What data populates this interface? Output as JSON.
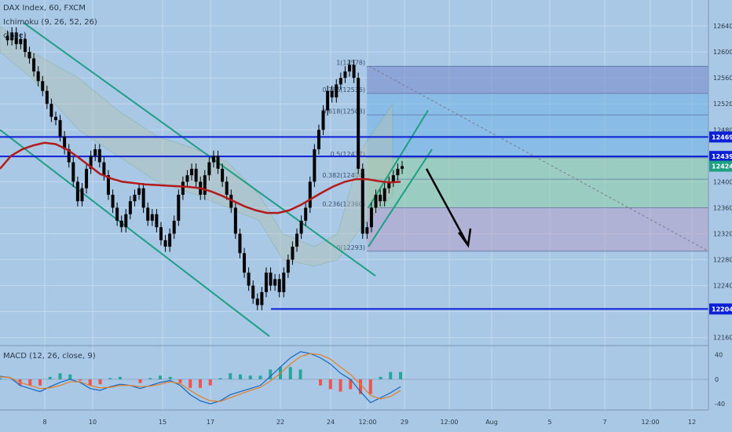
{
  "header": {
    "symbol_line": "DAX Index, 60, FXCM",
    "ichimoku_line": "Ichimoku (9, 26, 52, 26)",
    "ma_line": "close)"
  },
  "macd_header": "MACD (12, 26, close, 9)",
  "colors": {
    "background": "#a9c8e6",
    "grid": "#c3d8ec",
    "candle": "#000000",
    "ma": "#b31b1b",
    "channel": "#1e9e83",
    "level": "#0b1fd6",
    "fib_upper_zone": "#7486c9",
    "fib_mid_zone": "#6fb3e6",
    "fib_green_zone": "#8fcfa4",
    "fib_lower_zone": "#b6a1c6",
    "cloud_upper": "#b4c2b2",
    "cloud_lower": "#c6b1c2",
    "macd_line": "#1565c0",
    "signal_line": "#e67e22",
    "hist_pos": "#26a69a",
    "hist_neg": "#ef5350",
    "arrow": "#000000"
  },
  "chart_data": {
    "type": "candlestick",
    "y_range": [
      12150,
      12680
    ],
    "y_ticks": [
      12160,
      12200,
      12240,
      12280,
      12320,
      12360,
      12400,
      12440,
      12480,
      12520,
      12560,
      12600,
      12640
    ],
    "x_ticks": [
      "8",
      "10",
      "15",
      "17",
      "22",
      "24",
      "12:00",
      "29",
      "12:00",
      "Aug",
      "5",
      "7",
      "12:00",
      "12"
    ],
    "price_labels": [
      {
        "value": 12469,
        "text": "12469",
        "color": "#0b1fd6"
      },
      {
        "value": 12439,
        "text": "12439",
        "color": "#0b1fd6"
      },
      {
        "value": 12424,
        "text": "12424",
        "color": "#1e9e83"
      },
      {
        "value": 12204,
        "text": "12204",
        "color": "#0b1fd6"
      }
    ],
    "horizontal_levels": [
      12469,
      12439,
      12204
    ],
    "fib_levels": [
      {
        "ratio": "1",
        "value": 12578,
        "label": "1(12578)"
      },
      {
        "ratio": "0.786",
        "value": 12536,
        "label": "0.786(12536)"
      },
      {
        "ratio": "0.618",
        "value": 12503,
        "label": "0.618(12503)"
      },
      {
        "ratio": "0.5",
        "value": 12437,
        "label": "0.5(12437)"
      },
      {
        "ratio": "0.382",
        "value": 12404,
        "label": "0.382(12404)"
      },
      {
        "ratio": "0.236",
        "value": 12360,
        "label": "0.236(12360)"
      },
      {
        "ratio": "0",
        "value": 12293,
        "label": "0(12293)"
      }
    ],
    "close_series": [
      12625,
      12618,
      12630,
      12612,
      12620,
      12600,
      12590,
      12570,
      12555,
      12540,
      12520,
      12500,
      12495,
      12470,
      12450,
      12430,
      12400,
      12370,
      12390,
      12420,
      12440,
      12450,
      12430,
      12410,
      12380,
      12360,
      12340,
      12330,
      12350,
      12370,
      12380,
      12390,
      12360,
      12340,
      12350,
      12330,
      12310,
      12300,
      12320,
      12340,
      12380,
      12400,
      12410,
      12420,
      12400,
      12380,
      12410,
      12430,
      12440,
      12420,
      12400,
      12380,
      12360,
      12320,
      12290,
      12260,
      12240,
      12220,
      12210,
      12230,
      12260,
      12240,
      12250,
      12230,
      12260,
      12280,
      12300,
      12320,
      12340,
      12360,
      12400,
      12450,
      12480,
      12510,
      12540,
      12530,
      12550,
      12560,
      12570,
      12580,
      12560,
      12420,
      12320,
      12330,
      12360,
      12380,
      12370,
      12390,
      12400,
      12410,
      12420,
      12424
    ],
    "ma_series": [
      12420,
      12440,
      12450,
      12456,
      12460,
      12458,
      12450,
      12438,
      12425,
      12412,
      12405,
      12400,
      12398,
      12396,
      12395,
      12394,
      12393,
      12392,
      12390,
      12385,
      12378,
      12370,
      12362,
      12356,
      12352,
      12352,
      12356,
      12364,
      12374,
      12384,
      12393,
      12400,
      12404,
      12404,
      12401,
      12399,
      12400
    ],
    "macd": {
      "range": [
        -50,
        55
      ],
      "ticks": [
        40,
        0,
        -40
      ],
      "macd_series": [
        5,
        3,
        -10,
        -15,
        -20,
        -12,
        -5,
        0,
        -5,
        -15,
        -18,
        -12,
        -8,
        -10,
        -15,
        -10,
        -5,
        -2,
        -10,
        -25,
        -35,
        -40,
        -35,
        -25,
        -20,
        -15,
        -10,
        5,
        20,
        35,
        45,
        42,
        35,
        25,
        10,
        0,
        -20,
        -38,
        -30,
        -22,
        -12
      ],
      "signal_series": [
        4,
        3,
        -5,
        -10,
        -15,
        -14,
        -10,
        -4,
        -4,
        -10,
        -14,
        -13,
        -10,
        -10,
        -12,
        -11,
        -8,
        -4,
        -7,
        -18,
        -28,
        -35,
        -36,
        -30,
        -24,
        -18,
        -13,
        -3,
        10,
        25,
        37,
        42,
        40,
        33,
        20,
        8,
        -8,
        -26,
        -32,
        -28,
        -18
      ]
    }
  }
}
